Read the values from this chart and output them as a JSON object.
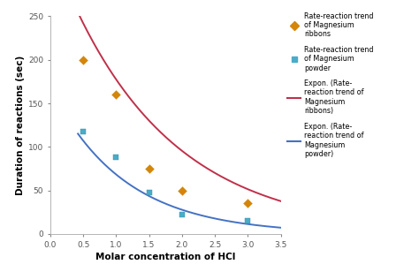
{
  "ribbon_x": [
    0.5,
    1.0,
    1.5,
    2.0,
    3.0
  ],
  "ribbon_y": [
    200,
    160,
    75,
    50,
    35
  ],
  "powder_x": [
    0.5,
    1.0,
    1.5,
    2.0,
    3.0
  ],
  "powder_y": [
    118,
    88,
    48,
    22,
    15
  ],
  "ribbon_color": "#d4860a",
  "powder_color": "#4bacc6",
  "ribbon_trend_color": "#c0304a",
  "powder_trend_color": "#4472c4",
  "xlabel": "Molar concentration of HCl",
  "ylabel": "Duration of reactions (sec)",
  "xlim": [
    0,
    3.5
  ],
  "ylim": [
    0,
    250
  ],
  "xticks": [
    0,
    0.5,
    1.0,
    1.5,
    2.0,
    2.5,
    3.0,
    3.5
  ],
  "yticks": [
    0,
    50,
    100,
    150,
    200,
    250
  ],
  "legend_ribbon_scatter": "Rate-reaction trend\nof Magnesium\nribbons",
  "legend_powder_scatter": "Rate-reaction trend\nof Magnesium\npowder",
  "legend_ribbon_trend": "Expon. (Rate-\nreaction trend of\nMagnesium\nribbons)",
  "legend_powder_trend": "Expon. (Rate-\nreaction trend of\nMagnesium\npowder)",
  "ribbon_exp_a": 330.0,
  "ribbon_exp_b": -0.62,
  "powder_exp_a": 168.0,
  "powder_exp_b": -0.9,
  "background_color": "#ffffff"
}
